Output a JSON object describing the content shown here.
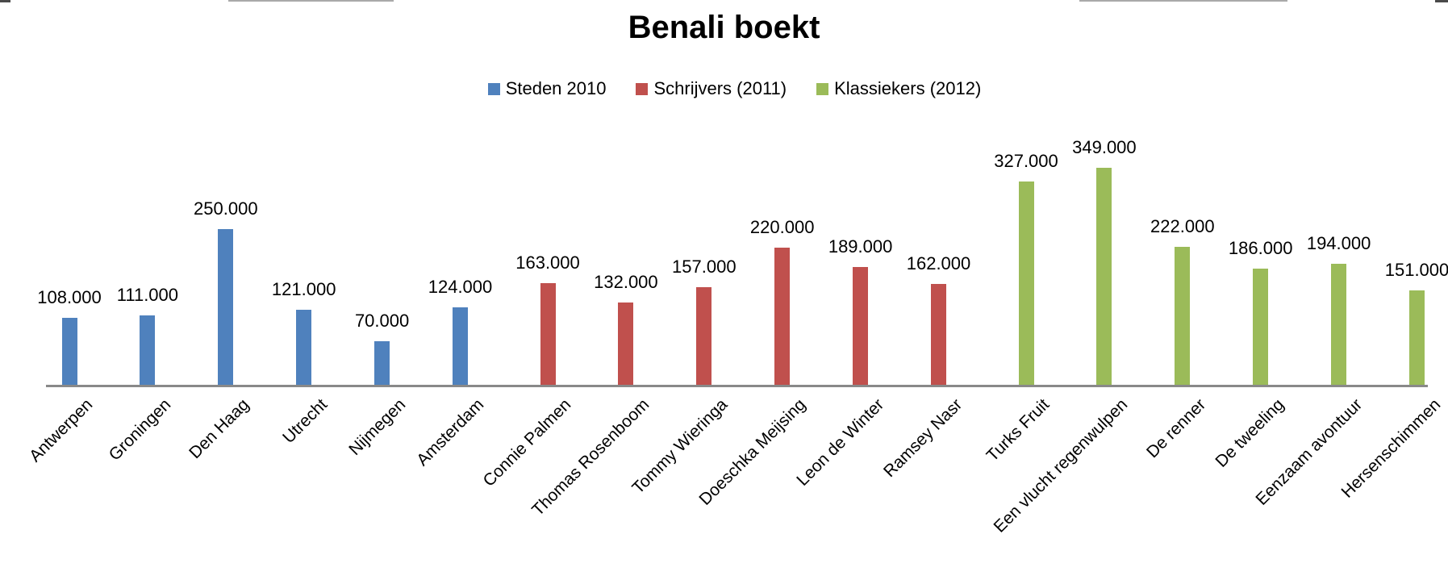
{
  "title": "Benali boekt",
  "colors": {
    "axis": "#898989",
    "blue": "#4F81BD",
    "red": "#C0504D",
    "green": "#9BBB59"
  },
  "chart_data": {
    "type": "bar",
    "title": "Benali boekt",
    "xlabel": "",
    "ylabel": "",
    "ylim": [
      0,
      360000
    ],
    "grid": false,
    "y_axis_visible": false,
    "legend_position": "top",
    "data_labels": "outside-end",
    "series": [
      {
        "name": "Steden 2010",
        "color": "#4F81BD"
      },
      {
        "name": "Schrijvers (2011)",
        "color": "#C0504D"
      },
      {
        "name": "Klassiekers (2012)",
        "color": "#9BBB59"
      }
    ],
    "points": [
      {
        "category": "Antwerpen",
        "series": "Steden 2010",
        "value": 108000,
        "label": "108.000"
      },
      {
        "category": "Groningen",
        "series": "Steden 2010",
        "value": 111000,
        "label": "111.000"
      },
      {
        "category": "Den Haag",
        "series": "Steden 2010",
        "value": 250000,
        "label": "250.000"
      },
      {
        "category": "Utrecht",
        "series": "Steden 2010",
        "value": 121000,
        "label": "121.000"
      },
      {
        "category": "Nijmegen",
        "series": "Steden 2010",
        "value": 70000,
        "label": "70.000"
      },
      {
        "category": "Amsterdam",
        "series": "Steden 2010",
        "value": 124000,
        "label": "124.000"
      },
      {
        "category": "Connie Palmen",
        "series": "Schrijvers (2011)",
        "value": 163000,
        "label": "163.000"
      },
      {
        "category": "Thomas Rosenboom",
        "series": "Schrijvers (2011)",
        "value": 132000,
        "label": "132.000"
      },
      {
        "category": "Tommy Wieringa",
        "series": "Schrijvers (2011)",
        "value": 157000,
        "label": "157.000"
      },
      {
        "category": "Doeschka Meijsing",
        "series": "Schrijvers (2011)",
        "value": 220000,
        "label": "220.000"
      },
      {
        "category": "Leon de Winter",
        "series": "Schrijvers (2011)",
        "value": 189000,
        "label": "189.000"
      },
      {
        "category": "Ramsey Nasr",
        "series": "Schrijvers (2011)",
        "value": 162000,
        "label": "162.000"
      },
      {
        "category": "Turks Fruit",
        "series": "Klassiekers (2012)",
        "value": 327000,
        "label": "327.000"
      },
      {
        "category": "Een vlucht regenwulpen",
        "series": "Klassiekers (2012)",
        "value": 349000,
        "label": "349.000"
      },
      {
        "category": "De renner",
        "series": "Klassiekers (2012)",
        "value": 222000,
        "label": "222.000"
      },
      {
        "category": "De tweeling",
        "series": "Klassiekers (2012)",
        "value": 186000,
        "label": "186.000"
      },
      {
        "category": "Eenzaam avontuur",
        "series": "Klassiekers (2012)",
        "value": 194000,
        "label": "194.000"
      },
      {
        "category": "Hersenschimmen",
        "series": "Klassiekers (2012)",
        "value": 151000,
        "label": "151.000"
      }
    ]
  }
}
